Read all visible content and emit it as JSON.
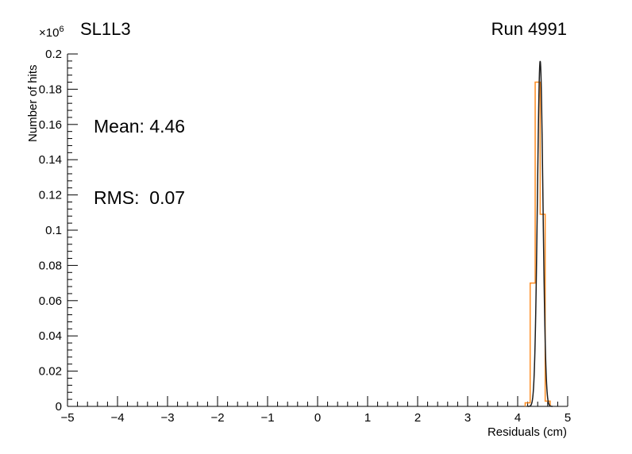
{
  "chart_data": {
    "type": "bar",
    "subtype": "step-histogram-with-fit",
    "title": "SL1L3",
    "run_label": "Run 4991",
    "xlabel": "Residuals (cm)",
    "ylabel": "Number of hits",
    "y_scale_factor": "×10",
    "y_scale_exponent": "6",
    "xlim": [
      -5,
      5
    ],
    "ylim": [
      0,
      0.2
    ],
    "x_major_step": 1,
    "x_minor_divisions": 5,
    "y_major_step": 0.02,
    "y_minor_divisions": 5,
    "x_ticks": [
      -5,
      -4,
      -3,
      -2,
      -1,
      0,
      1,
      2,
      3,
      4,
      5
    ],
    "y_ticks": [
      0,
      0.02,
      0.04,
      0.06,
      0.08,
      0.1,
      0.12,
      0.14,
      0.16,
      0.18,
      0.2
    ],
    "grid": false,
    "legend": "none",
    "stats": {
      "mean": "Mean: 4.46",
      "rms": "RMS:  0.07"
    },
    "series": [
      {
        "name": "residuals-histogram",
        "type": "step-histogram",
        "color": "#ff8c21",
        "bin_edges": [
          4.15,
          4.25,
          4.35,
          4.45,
          4.55,
          4.65
        ],
        "counts": [
          0.002,
          0.07,
          0.184,
          0.109,
          0.003
        ]
      },
      {
        "name": "gaussian-fit",
        "type": "gaussian",
        "color": "#1c1c1c",
        "mean": 4.45,
        "sigma": 0.055,
        "amplitude": 0.196
      }
    ]
  },
  "colors": {
    "background": "#ffffff",
    "axis": "#000000",
    "histogram": "#ff8c21",
    "fit_line": "#1c1c1c"
  }
}
